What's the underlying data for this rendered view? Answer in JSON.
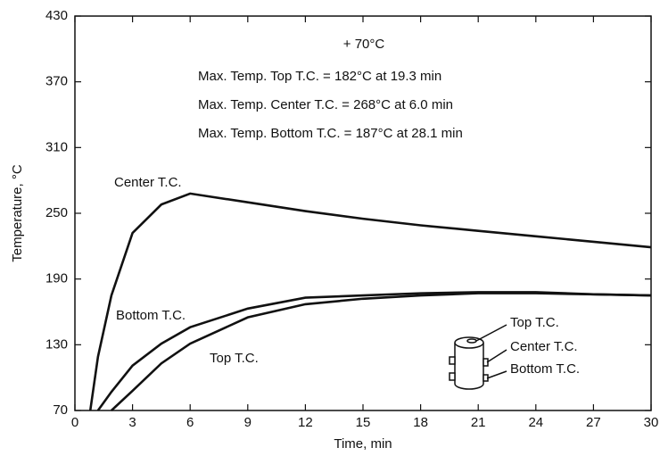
{
  "chart_data": {
    "type": "line",
    "xlabel": "Time, min",
    "ylabel": "Temperature, °C",
    "annotations": [
      "+ 70°C",
      "Max. Temp. Top  T.C. = 182°C at 19.3 min",
      "Max. Temp. Center T.C. = 268°C at 6.0 min",
      "Max. Temp. Bottom T.C. = 187°C at 28.1 min"
    ],
    "inset_labels": [
      "Top T.C.",
      "Center T.C.",
      "Bottom T.C."
    ],
    "x": [
      0.8,
      1.2,
      1.9,
      3,
      4.5,
      6,
      9,
      12,
      15,
      18,
      21,
      24,
      27,
      30
    ],
    "series": [
      {
        "name": "Center T.C.",
        "color": "#111111",
        "values": [
          70,
          119,
          175,
          232,
          258,
          268,
          260,
          252,
          245,
          239,
          234,
          229,
          224,
          219
        ]
      },
      {
        "name": "Bottom T.C.",
        "color": "#111111",
        "values": [
          null,
          70,
          87,
          111,
          131,
          146,
          163,
          173,
          175,
          177,
          178,
          178,
          176,
          175
        ]
      },
      {
        "name": "Top T.C.",
        "color": "#111111",
        "values": [
          null,
          null,
          70,
          88,
          113,
          131,
          155,
          167,
          172,
          175,
          177,
          177,
          176,
          175
        ]
      }
    ],
    "xlim": [
      0,
      30
    ],
    "ylim": [
      70,
      430
    ],
    "xticks": [
      0,
      3,
      6,
      9,
      12,
      15,
      18,
      21,
      24,
      27,
      30
    ],
    "yticks": [
      70,
      130,
      190,
      250,
      310,
      370,
      430
    ]
  }
}
